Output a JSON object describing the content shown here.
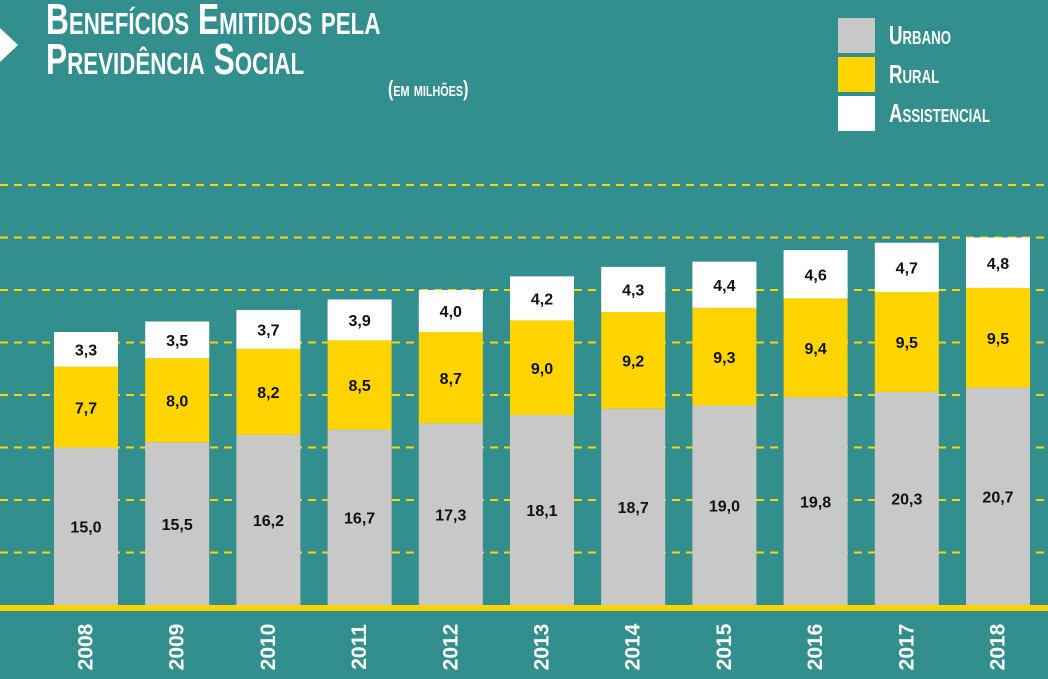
{
  "chart_data": {
    "type": "stacked_bar",
    "title": "Benefícios Emitidos pela Previdência Social",
    "subtitle": "(em milhões)",
    "categories": [
      "2008",
      "2009",
      "2010",
      "2011",
      "2012",
      "2013",
      "2014",
      "2015",
      "2016",
      "2017",
      "2018"
    ],
    "series": [
      {
        "name": "Urbano",
        "color": "#c8c8c8",
        "values": [
          15.0,
          15.5,
          16.2,
          16.7,
          17.3,
          18.1,
          18.7,
          19.0,
          19.8,
          20.3,
          20.7
        ],
        "value_labels": [
          "15,0",
          "15,5",
          "16,2",
          "16,7",
          "17,3",
          "18,1",
          "18,7",
          "19,0",
          "19,8",
          "20,3",
          "20,7"
        ]
      },
      {
        "name": "Rural",
        "color": "#ffd400",
        "values": [
          7.7,
          8.0,
          8.2,
          8.5,
          8.7,
          9.0,
          9.2,
          9.3,
          9.4,
          9.5,
          9.5
        ],
        "value_labels": [
          "7,7",
          "8,0",
          "8,2",
          "8,5",
          "8,7",
          "9,0",
          "9,2",
          "9,3",
          "9,4",
          "9,5",
          "9,5"
        ]
      },
      {
        "name": "Assistencial",
        "color": "#ffffff",
        "values": [
          3.3,
          3.5,
          3.7,
          3.9,
          4.0,
          4.2,
          4.3,
          4.4,
          4.6,
          4.7,
          4.8
        ],
        "value_labels": [
          "3,3",
          "3,5",
          "3,7",
          "3,9",
          "4,0",
          "4,2",
          "4,3",
          "4,4",
          "4,6",
          "4,7",
          "4,8"
        ]
      }
    ],
    "ylim": [
      0,
      40
    ],
    "yticks": [
      5,
      10,
      15,
      20,
      25,
      30,
      35,
      40
    ],
    "grid": true,
    "grid_color": "#ffd400",
    "legend": "top-right"
  }
}
